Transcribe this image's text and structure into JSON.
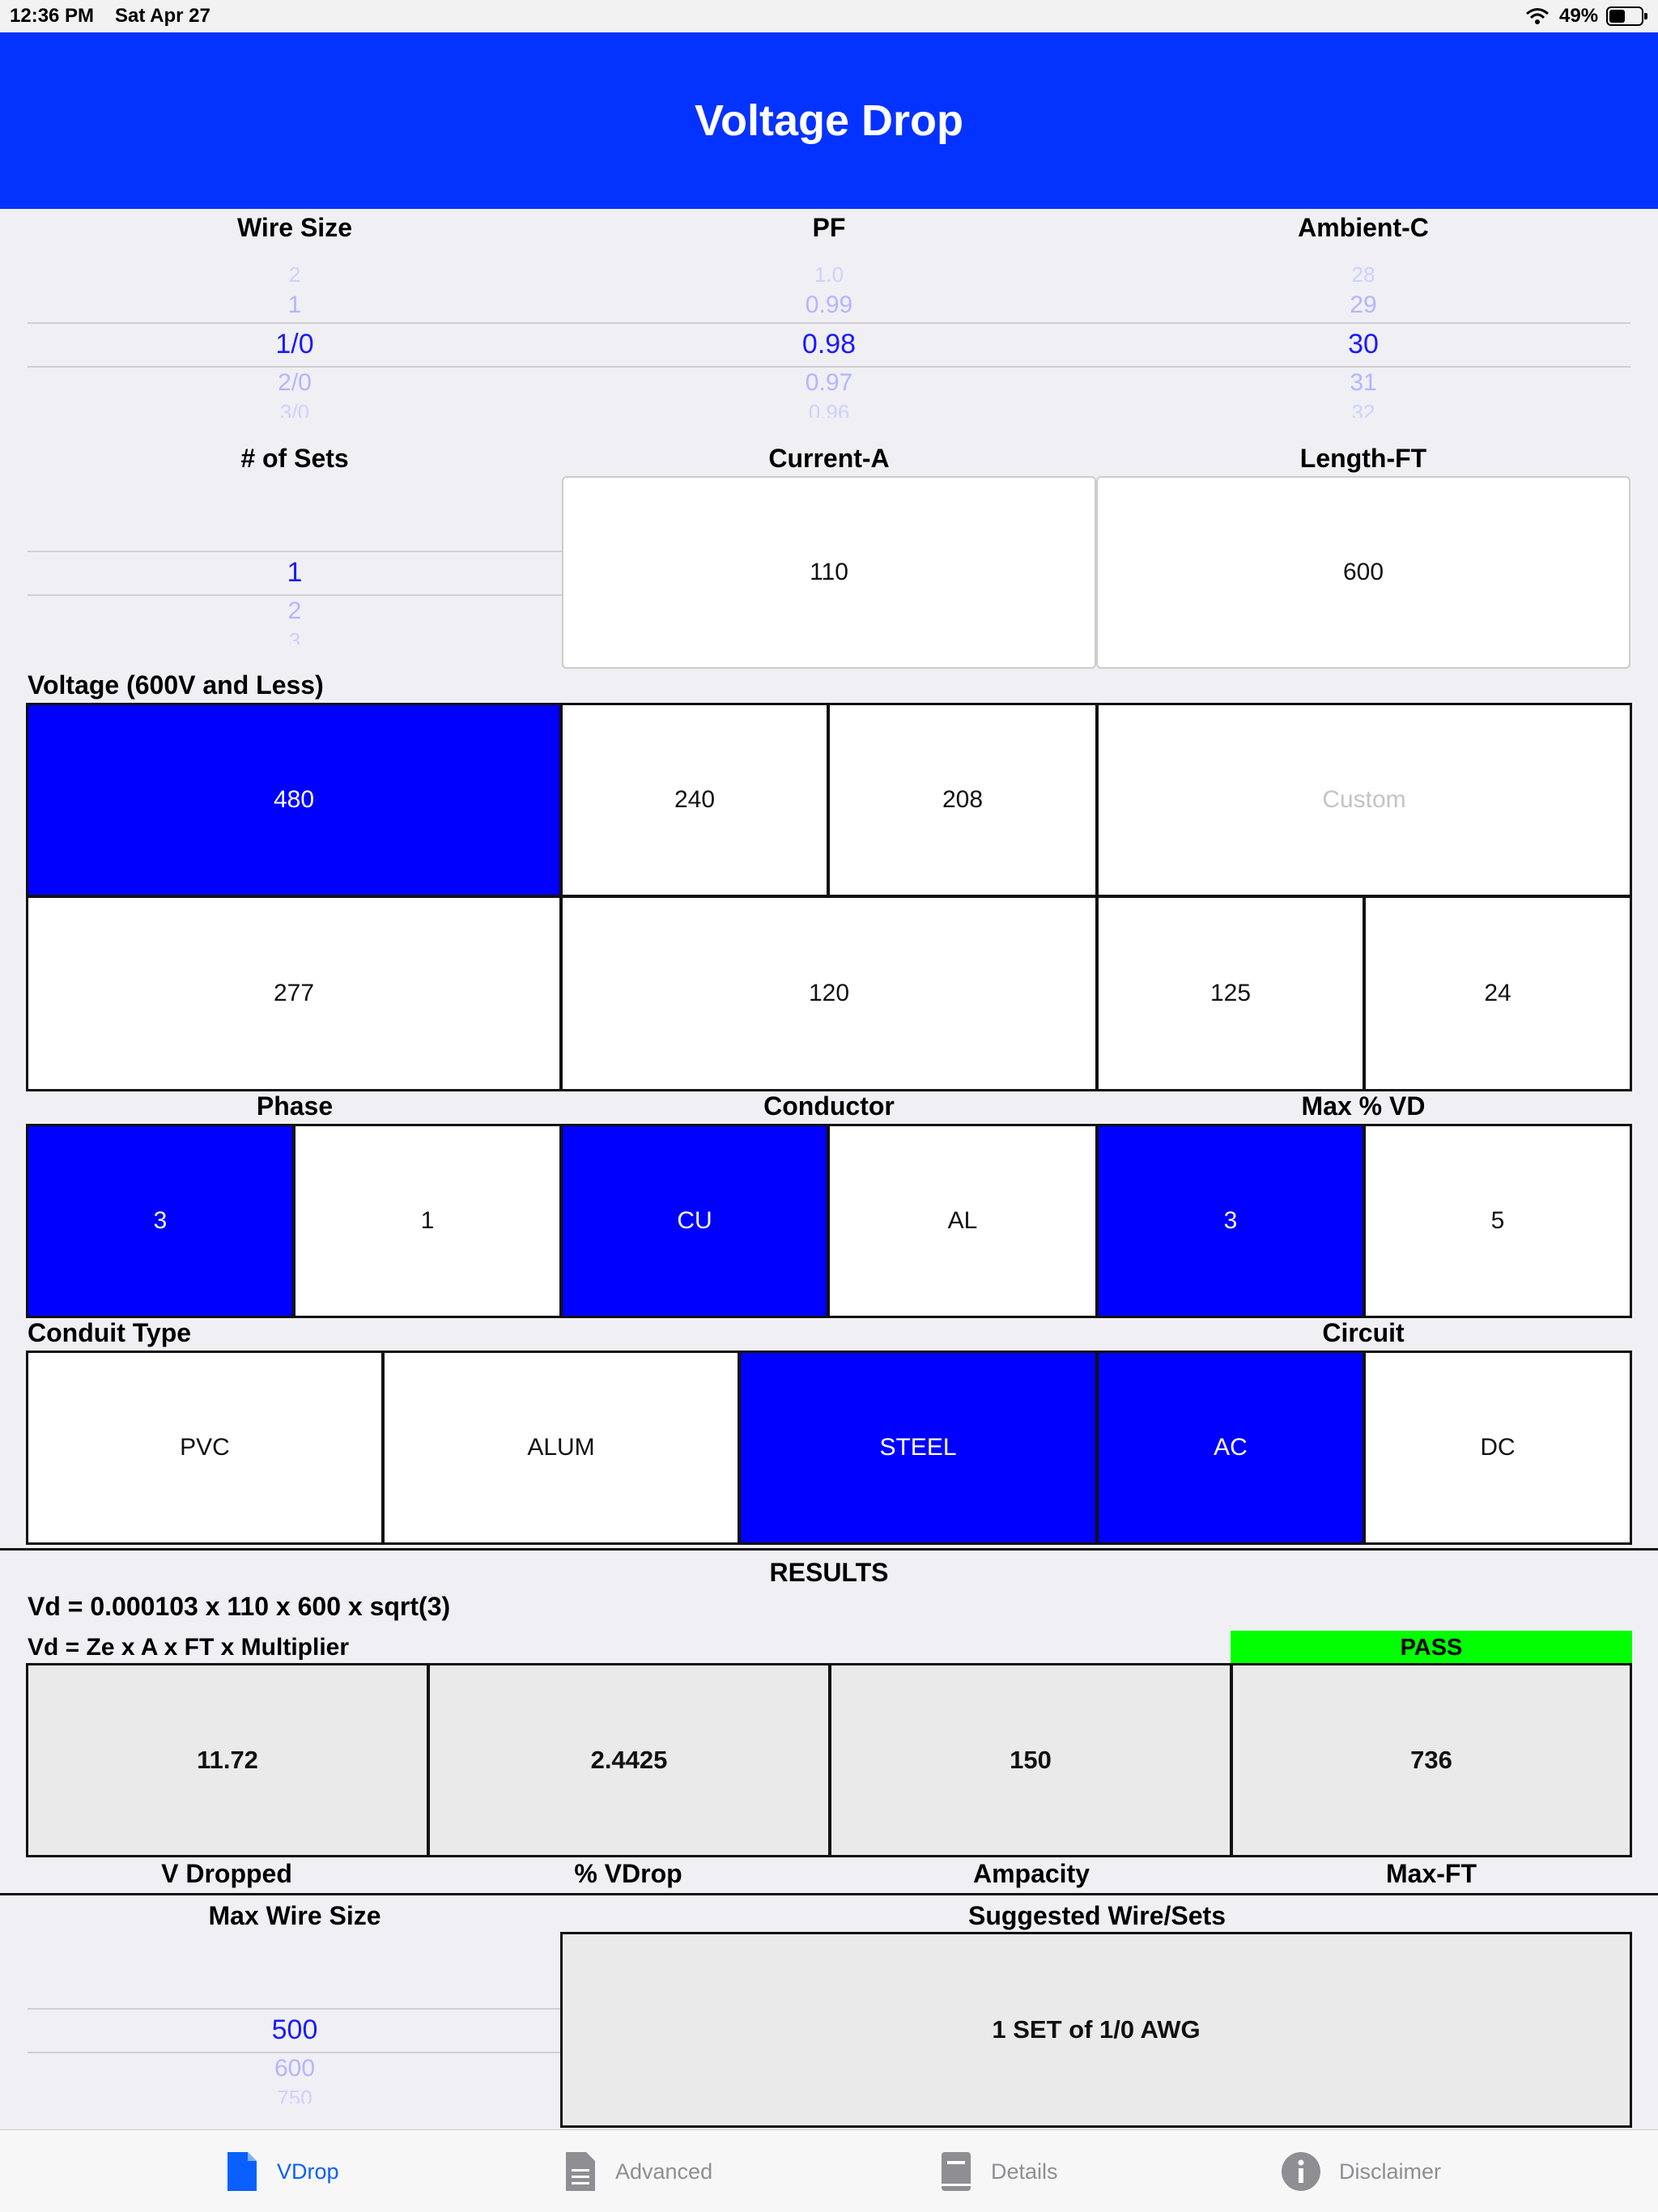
{
  "status_bar": {
    "time": "12:36 PM",
    "date": "Sat Apr 27",
    "battery": "49%"
  },
  "header": {
    "title": "Voltage Drop"
  },
  "wire_size": {
    "label": "Wire Size",
    "items": [
      "2",
      "1",
      "1/0",
      "2/0",
      "3/0"
    ],
    "selected": "1/0"
  },
  "pf": {
    "label": "PF",
    "items": [
      "1.0",
      "0.99",
      "0.98",
      "0.97",
      "0.96"
    ],
    "selected": "0.98"
  },
  "ambient": {
    "label": "Ambient-C",
    "items": [
      "28",
      "29",
      "30",
      "31",
      "32"
    ],
    "selected": "30"
  },
  "sets": {
    "label": "# of Sets",
    "items": [
      "1",
      "2",
      "3"
    ],
    "selected": "1"
  },
  "current": {
    "label": "Current-A",
    "value": "110"
  },
  "length": {
    "label": "Length-FT",
    "value": "600"
  },
  "voltage": {
    "label": "Voltage (600V and Less)",
    "options": [
      "480",
      "240",
      "208",
      "277",
      "120",
      "125",
      "24"
    ],
    "custom_placeholder": "Custom",
    "selected": "480"
  },
  "phase": {
    "label": "Phase",
    "options": [
      "3",
      "1"
    ],
    "selected": "3"
  },
  "conductor": {
    "label": "Conductor",
    "options": [
      "CU",
      "AL"
    ],
    "selected": "CU"
  },
  "max_vd": {
    "label": "Max % VD",
    "options": [
      "3",
      "5"
    ],
    "selected": "3"
  },
  "conduit": {
    "label": "Conduit Type",
    "options": [
      "PVC",
      "ALUM",
      "STEEL"
    ],
    "selected": "STEEL"
  },
  "circuit": {
    "label": "Circuit",
    "options": [
      "AC",
      "DC"
    ],
    "selected": "AC"
  },
  "results": {
    "title": "RESULTS",
    "formula": "Vd = 0.000103 x 110 x 600 x sqrt(3)",
    "formula_general": "Vd = Ze x A x FT x Multiplier",
    "status": "PASS",
    "status_color": "#00ff00",
    "values": [
      {
        "label": "V Dropped",
        "value": "11.72"
      },
      {
        "label": "% VDrop",
        "value": "2.4425"
      },
      {
        "label": "Ampacity",
        "value": "150"
      },
      {
        "label": "Max-FT",
        "value": "736"
      }
    ]
  },
  "max_wire": {
    "label": "Max Wire Size",
    "items": [
      "500",
      "600",
      "750"
    ],
    "selected": "500"
  },
  "suggested": {
    "label": "Suggested Wire/Sets",
    "value": "1 SET of 1/0 AWG"
  },
  "tabs": [
    {
      "label": "VDrop",
      "icon": "document-icon",
      "active": true
    },
    {
      "label": "Advanced",
      "icon": "document-text-icon",
      "active": false
    },
    {
      "label": "Details",
      "icon": "book-icon",
      "active": false
    },
    {
      "label": "Disclaimer",
      "icon": "info-icon",
      "active": false
    }
  ],
  "colors": {
    "accent": "#0432ff",
    "selected": "#0000ff",
    "pass": "#00ff00"
  }
}
